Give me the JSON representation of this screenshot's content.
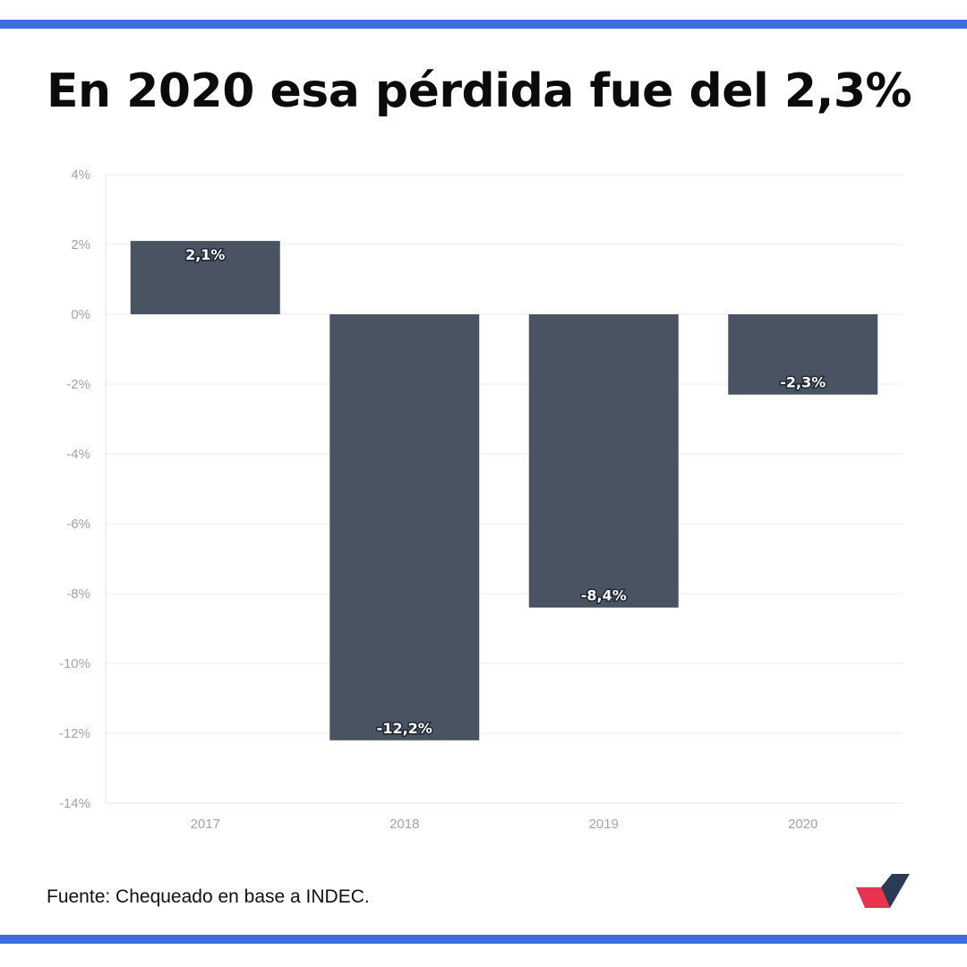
{
  "header": {
    "title": "En 2020 esa pérdida fue del 2,3%"
  },
  "footer": {
    "source": "Fuente: Chequeado en base a INDEC."
  },
  "colors": {
    "accent_rule": "#3d6ee0",
    "bar": "#4a5362",
    "logo_red": "#e8344e",
    "logo_dark": "#2b3a55"
  },
  "chart_data": {
    "type": "bar",
    "categories": [
      "2017",
      "2018",
      "2019",
      "2020"
    ],
    "values": [
      2.1,
      -12.2,
      -8.4,
      -2.3
    ],
    "data_labels": [
      "2,1%",
      "-12,2%",
      "-8,4%",
      "-2,3%"
    ],
    "yticks": [
      4,
      2,
      0,
      -2,
      -4,
      -6,
      -8,
      -10,
      -12,
      -14
    ],
    "ytick_labels": [
      "4%",
      "2%",
      "0%",
      "-2%",
      "-4%",
      "-6%",
      "-8%",
      "-10%",
      "-12%",
      "-14%"
    ],
    "ylim": [
      -14,
      4
    ],
    "grid": true,
    "legend": "none"
  }
}
